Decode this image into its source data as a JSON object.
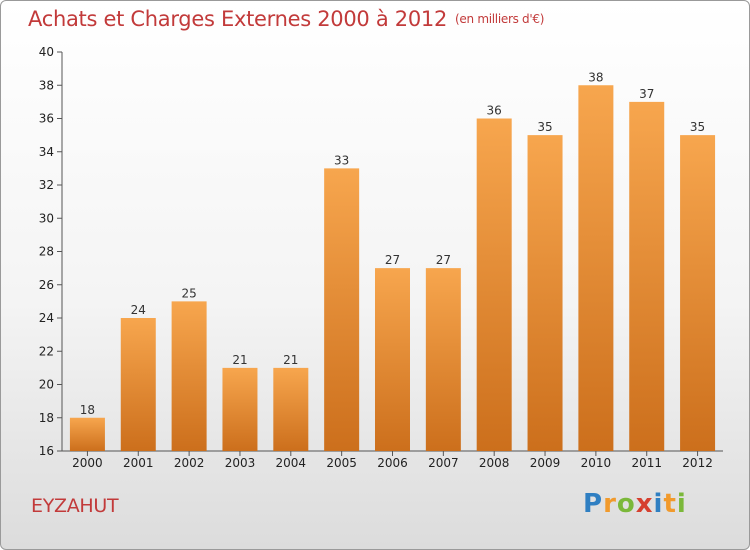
{
  "title": "Achats et Charges Externes 2000 à 2012",
  "subtitle": "(en milliers d'€)",
  "commune": "EYZAHUT",
  "logo": {
    "letters": [
      "P",
      "r",
      "o",
      "x",
      "i",
      "t",
      "i"
    ],
    "colors": [
      "#2f7fc2",
      "#f19a2c",
      "#7bb83a",
      "#d6402f",
      "#2f7fc2",
      "#f19a2c",
      "#7bb83a"
    ]
  },
  "colors": {
    "bar_light": "#f7a64e",
    "bar_dark": "#cc6f1c",
    "title": "#c23a3a"
  },
  "chart_data": {
    "type": "bar",
    "title": "Achats et Charges Externes 2000 à 2012",
    "subtitle": "(en milliers d'€)",
    "xlabel": "",
    "ylabel": "",
    "categories": [
      "2000",
      "2001",
      "2002",
      "2003",
      "2004",
      "2005",
      "2006",
      "2007",
      "2008",
      "2009",
      "2010",
      "2011",
      "2012"
    ],
    "values": [
      18,
      24,
      25,
      21,
      21,
      33,
      27,
      27,
      36,
      35,
      38,
      37,
      35
    ],
    "ylim": [
      16,
      40
    ],
    "yticks": [
      16,
      18,
      20,
      22,
      24,
      26,
      28,
      30,
      32,
      34,
      36,
      38,
      40
    ],
    "grid": false,
    "legend": "none"
  }
}
